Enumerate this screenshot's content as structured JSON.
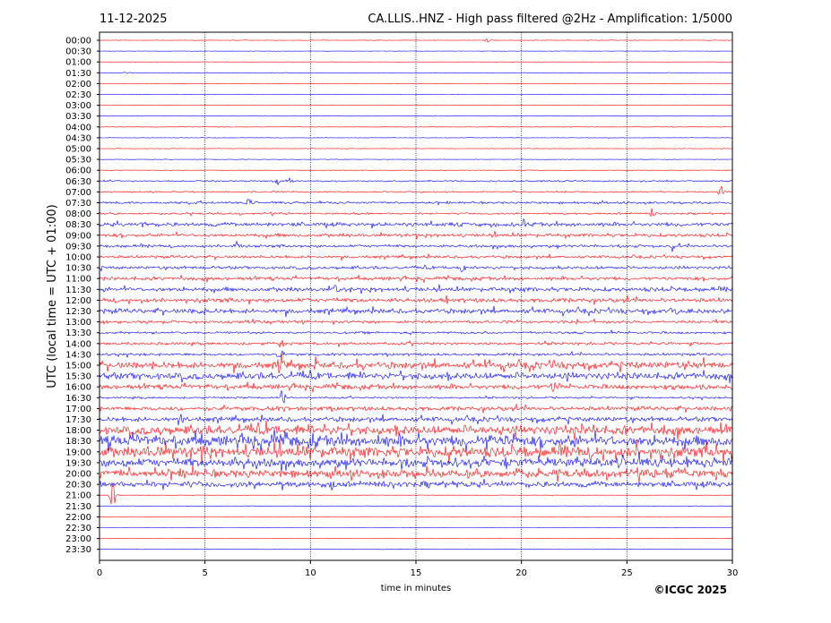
{
  "header": {
    "date": "11-12-2025",
    "title": "CA.LLIS..HNZ - High pass filtered @2Hz - Amplification: 1/5000"
  },
  "footer": {
    "copyright": "©ICGC 2025"
  },
  "chart_data": {
    "type": "line",
    "title": "CA.LLIS..HNZ - High pass filtered @2Hz - Amplification: 1/5000",
    "xlabel": "time in minutes",
    "ylabel": "UTC (local time = UTC + 01:00)",
    "xlim": [
      0,
      30
    ],
    "xticks": [
      0,
      5,
      10,
      15,
      20,
      25,
      30
    ],
    "vertical_gridlines": [
      5,
      10,
      15,
      20,
      25
    ],
    "grid": "vertical dotted",
    "row_labels": [
      "00:00",
      "00:30",
      "01:00",
      "01:30",
      "02:00",
      "02:30",
      "03:00",
      "03:30",
      "04:00",
      "04:30",
      "05:00",
      "05:30",
      "06:00",
      "06:30",
      "07:00",
      "07:30",
      "08:00",
      "08:30",
      "09:00",
      "09:30",
      "10:00",
      "10:30",
      "11:00",
      "11:30",
      "12:00",
      "12:30",
      "13:00",
      "13:30",
      "14:00",
      "14:30",
      "15:00",
      "15:30",
      "16:00",
      "16:30",
      "17:00",
      "17:30",
      "18:00",
      "18:30",
      "19:00",
      "19:30",
      "20:00",
      "20:30",
      "21:00",
      "21:30",
      "22:00",
      "22:30",
      "23:00",
      "23:30"
    ],
    "colors": {
      "even_rows": "#ff0000",
      "odd_rows": "#0000ff"
    },
    "activity": [
      0.3,
      0.2,
      0.15,
      0.2,
      0.2,
      0.2,
      0.15,
      0.15,
      0.3,
      0.3,
      0.3,
      0.3,
      0.3,
      0.8,
      0.8,
      1.2,
      1.0,
      2.0,
      1.8,
      1.5,
      1.5,
      1.6,
      1.8,
      2.2,
      2.2,
      2.5,
      1.5,
      1.2,
      1.4,
      1.4,
      3.5,
      3.5,
      2.5,
      1.0,
      2.2,
      2.5,
      4.5,
      5.5,
      5.5,
      4.5,
      4.0,
      3.0,
      0.2,
      0.2,
      0.2,
      0.15,
      0.15,
      0.15
    ],
    "events": [
      {
        "row": 0,
        "minute": 18.4,
        "amp": 3
      },
      {
        "row": 3,
        "minute": 1.3,
        "amp": 2
      },
      {
        "row": 13,
        "minute": 8.4,
        "amp": 8
      },
      {
        "row": 13,
        "minute": 9.0,
        "amp": 6
      },
      {
        "row": 14,
        "minute": 29.5,
        "amp": 9
      },
      {
        "row": 15,
        "minute": 7.1,
        "amp": 12
      },
      {
        "row": 16,
        "minute": 26.2,
        "amp": 10
      },
      {
        "row": 17,
        "minute": 2.1,
        "amp": 9
      },
      {
        "row": 17,
        "minute": 20.1,
        "amp": 9
      },
      {
        "row": 19,
        "minute": 6.6,
        "amp": 9
      },
      {
        "row": 19,
        "minute": 27.2,
        "amp": 9
      },
      {
        "row": 21,
        "minute": 17.2,
        "amp": 9
      },
      {
        "row": 23,
        "minute": 11.2,
        "amp": 10
      },
      {
        "row": 24,
        "minute": 16.4,
        "amp": 9
      },
      {
        "row": 25,
        "minute": 4.7,
        "amp": 10
      },
      {
        "row": 25,
        "minute": 27.2,
        "amp": 12
      },
      {
        "row": 28,
        "minute": 8.6,
        "amp": 11
      },
      {
        "row": 29,
        "minute": 8.6,
        "amp": 14
      },
      {
        "row": 30,
        "minute": 8.6,
        "amp": 22
      },
      {
        "row": 30,
        "minute": 10.3,
        "amp": 14
      },
      {
        "row": 32,
        "minute": 21.5,
        "amp": 12
      },
      {
        "row": 33,
        "minute": 8.6,
        "amp": 20
      },
      {
        "row": 35,
        "minute": 4.0,
        "amp": 16
      },
      {
        "row": 41,
        "minute": 11.1,
        "amp": 10
      },
      {
        "row": 42,
        "minute": 0.65,
        "amp": 30
      }
    ]
  }
}
